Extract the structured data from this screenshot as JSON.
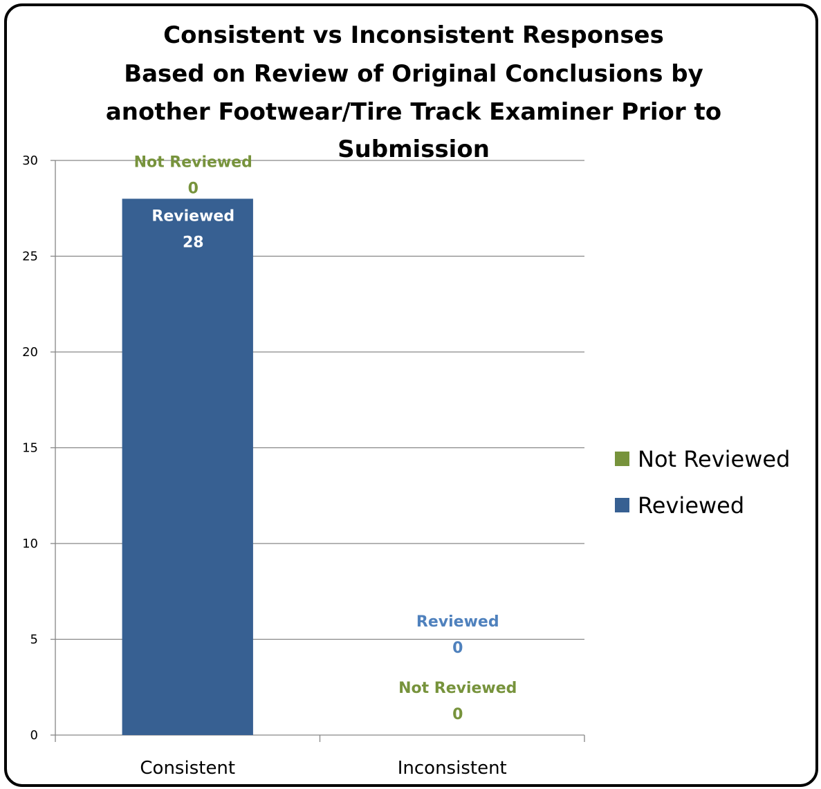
{
  "chart_data": {
    "type": "bar",
    "stacked": true,
    "title": [
      "Consistent vs Inconsistent Responses",
      "Based on Review of Original Conclusions by",
      "another Footwear/Tire Track Examiner Prior to",
      "Submission"
    ],
    "categories": [
      "Consistent",
      "Inconsistent"
    ],
    "series": [
      {
        "name": "Reviewed",
        "values": [
          28,
          0
        ],
        "color": "#376092"
      },
      {
        "name": "Not Reviewed",
        "values": [
          0,
          0
        ],
        "color": "#77933c"
      }
    ],
    "data_labels": [
      {
        "series": "Not Reviewed",
        "category": "Consistent",
        "text": [
          "Not Reviewed",
          "0"
        ],
        "color": "#77933c"
      },
      {
        "series": "Reviewed",
        "category": "Consistent",
        "text": [
          "Reviewed",
          "28"
        ],
        "color": "#ffffff"
      },
      {
        "series": "Reviewed",
        "category": "Inconsistent",
        "text": [
          "Reviewed",
          "0"
        ],
        "color": "#4f81bd"
      },
      {
        "series": "Not Reviewed",
        "category": "Inconsistent",
        "text": [
          "Not Reviewed",
          "0"
        ],
        "color": "#77933c"
      }
    ],
    "ylim": [
      0,
      30
    ],
    "yticks": [
      0,
      5,
      10,
      15,
      20,
      25,
      30
    ],
    "grid": true,
    "legend": {
      "position": "right",
      "entries": [
        "Not Reviewed",
        "Reviewed"
      ]
    },
    "gridline_color": "#868686"
  }
}
